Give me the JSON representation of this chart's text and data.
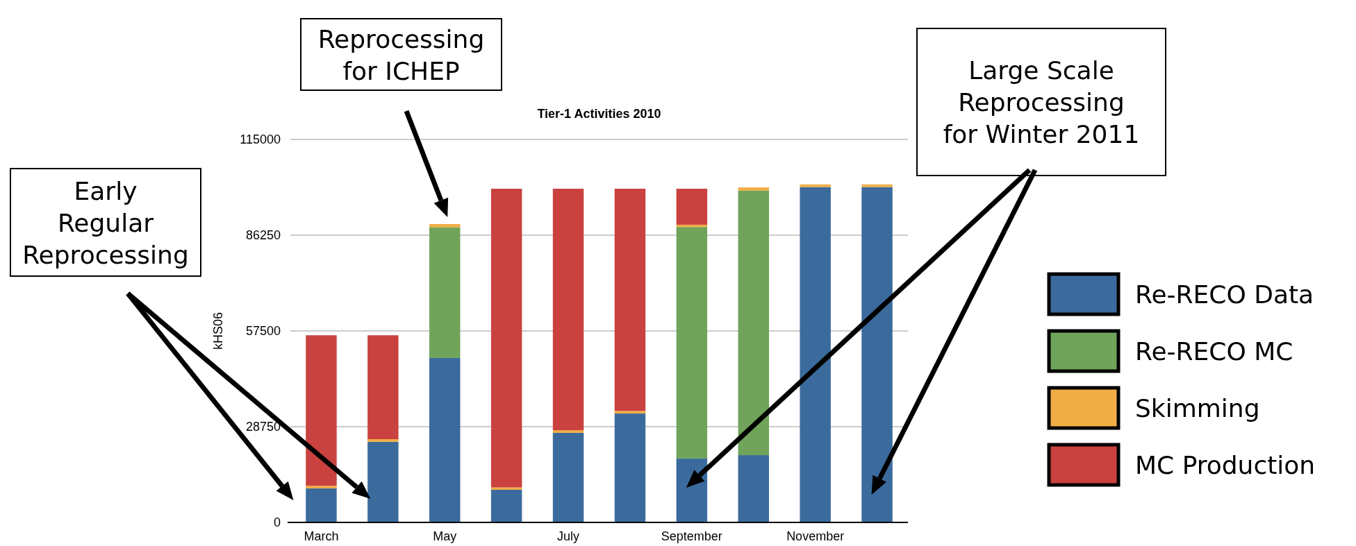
{
  "chart_data": {
    "type": "bar",
    "title": "Tier-1 Activities 2010",
    "ylabel": "kHS06",
    "categories": [
      "March",
      null,
      "May",
      null,
      "July",
      null,
      "September",
      null,
      "November",
      null
    ],
    "stacked": true,
    "series": [
      {
        "name": "Re-RECO Data",
        "color": "#3b6b9c",
        "values": [
          10200,
          24200,
          49400,
          9800,
          26900,
          32700,
          19200,
          20200,
          100700,
          100700
        ]
      },
      {
        "name": "Re-RECO MC",
        "color": "#6fa45a",
        "values": [
          0,
          0,
          39200,
          0,
          0,
          0,
          69500,
          79400,
          0,
          0
        ]
      },
      {
        "name": "Skimming",
        "color": "#f0ad46",
        "values": [
          800,
          800,
          1000,
          700,
          800,
          800,
          700,
          1000,
          800,
          800
        ]
      },
      {
        "name": "MC Production",
        "color": "#c9423f",
        "values": [
          45200,
          31200,
          0,
          89700,
          72500,
          66700,
          10800,
          0,
          0,
          0
        ]
      }
    ],
    "ylim": [
      0,
      115000
    ],
    "yticks": [
      0,
      28750,
      57500,
      86250,
      115000
    ],
    "grid": "y",
    "legend": "right",
    "annotations": [
      "Early Regular Reprocessing",
      "Reprocessing for ICHEP",
      "Large Scale Reprocessing for Winter 2011"
    ]
  }
}
